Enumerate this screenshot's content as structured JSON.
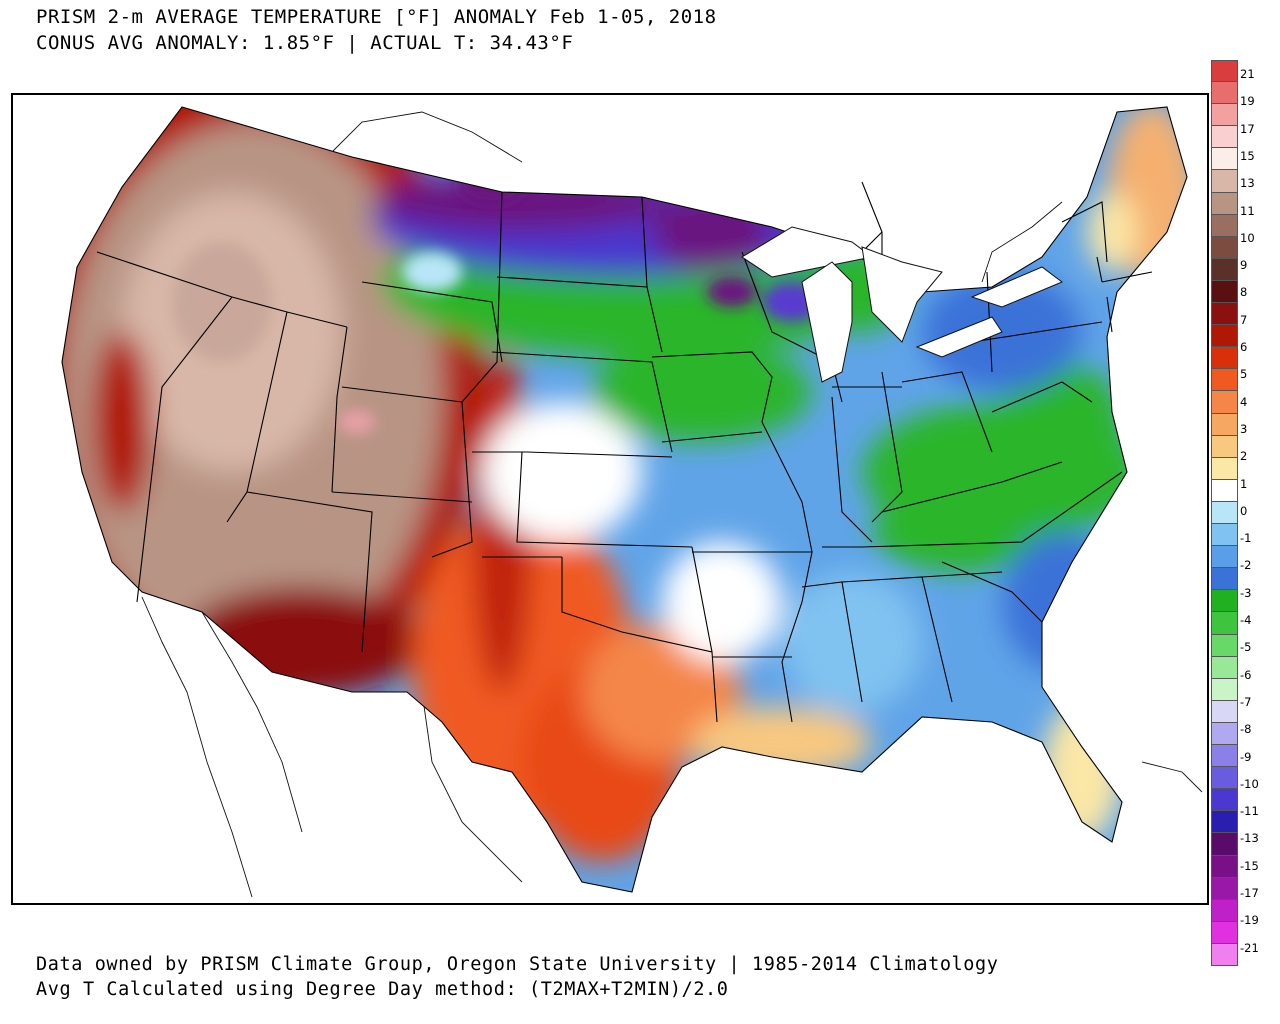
{
  "header": {
    "title_line1": "PRISM 2-m AVERAGE TEMPERATURE [°F] ANOMALY Feb 1-05, 2018",
    "title_line2": "CONUS AVG ANOMALY: 1.85°F | ACTUAL T: 34.43°F"
  },
  "footer": {
    "line1": "Data owned by PRISM Climate Group, Oregon State University | 1985-2014 Climatology",
    "line2": "Avg T Calculated using Degree Day method: (T2MAX+T2MIN)/2.0"
  },
  "map": {
    "region": "CONUS",
    "variable": "2-m average temperature anomaly",
    "units": "°F",
    "regional_anomaly_categories": [
      {
        "region": "Pacific Coast / Far West",
        "anomaly_range": [
          6,
          9
        ],
        "color": "#b01806"
      },
      {
        "region": "Great Basin / Intermountain West",
        "anomaly_range": [
          11,
          14
        ],
        "color": "#b09088"
      },
      {
        "region": "Southern Rockies / Texas",
        "anomaly_range": [
          3,
          6
        ],
        "color": "#f05a20"
      },
      {
        "region": "Northern Plains / Upper Midwest",
        "anomaly_range": [
          -16,
          -11
        ],
        "color": "#6a1380"
      },
      {
        "region": "Central Plains / Iowa",
        "anomaly_range": [
          -6,
          -4
        ],
        "color": "#2cb52c"
      },
      {
        "region": "Ohio Valley / Mid-Atlantic",
        "anomaly_range": [
          -6,
          -4
        ],
        "color": "#2cb52c"
      },
      {
        "region": "Southeast / Mississippi Valley",
        "anomaly_range": [
          -3,
          -1
        ],
        "color": "#5a9ee8"
      },
      {
        "region": "Florida / Gulf Coast",
        "anomaly_range": [
          0,
          2
        ],
        "color": "#fde69a"
      },
      {
        "region": "New England",
        "anomaly_range": [
          1,
          4
        ],
        "color": "#f5b070"
      }
    ]
  },
  "legend": {
    "labels": [
      "21",
      "19",
      "17",
      "15",
      "13",
      "11",
      "10",
      "9",
      "8",
      "7",
      "6",
      "5",
      "4",
      "3",
      "2",
      "1",
      "0",
      "-1",
      "-2",
      "-3",
      "-4",
      "-5",
      "-6",
      "-7",
      "-8",
      "-9",
      "-10",
      "-11",
      "-13",
      "-15",
      "-17",
      "-19",
      "-21"
    ],
    "colors": [
      "#d93d3d",
      "#e86d6d",
      "#f2a0a0",
      "#f9cfcf",
      "#fbeee8",
      "#d8b7a8",
      "#b89484",
      "#9b6e62",
      "#7c4c40",
      "#5a3028",
      "#5a1010",
      "#8b1010",
      "#b01806",
      "#d8300a",
      "#f05a20",
      "#f4864a",
      "#f6a862",
      "#f8c880",
      "#fbe7a6",
      "#ffffff",
      "#b8e6f8",
      "#80c2f0",
      "#5a9ee8",
      "#3a72d8",
      "#21b021",
      "#3ec43e",
      "#68d868",
      "#98e898",
      "#c8f4c8",
      "#d8d8f6",
      "#b0a8f0",
      "#8a80e8",
      "#6a5cde",
      "#4a38d0",
      "#2a1eb0",
      "#5a0a6a",
      "#7a1088",
      "#9a18a8",
      "#c020c8",
      "#e030e0",
      "#f080f0"
    ]
  }
}
